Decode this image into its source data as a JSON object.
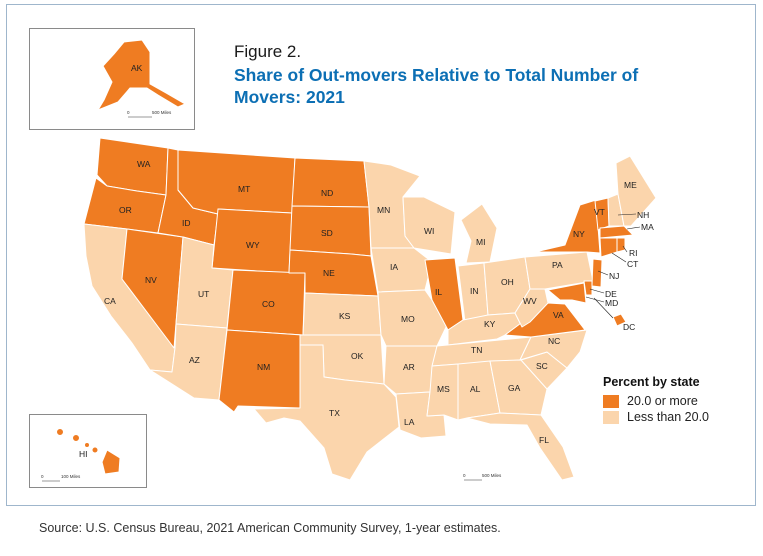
{
  "figure": {
    "label": "Figure 2.",
    "title": "Share of Out-movers Relative to Total Number of Movers: 2021"
  },
  "legend": {
    "title": "Percent by state",
    "items": [
      {
        "label": "20.0 or more",
        "color": "#ef7c22"
      },
      {
        "label": "Less than 20.0",
        "color": "#fbd5ac"
      }
    ]
  },
  "colors": {
    "high": "#ef7c22",
    "low": "#fbd5ac",
    "border": "#ffffff"
  },
  "states": {
    "WA": "high",
    "OR": "high",
    "CA": "low",
    "NV": "high",
    "ID": "high",
    "MT": "high",
    "WY": "high",
    "UT": "low",
    "AZ": "low",
    "CO": "high",
    "NM": "high",
    "ND": "high",
    "SD": "high",
    "NE": "high",
    "KS": "low",
    "OK": "low",
    "TX": "low",
    "MN": "low",
    "IA": "low",
    "MO": "low",
    "AR": "low",
    "LA": "low",
    "WI": "low",
    "IL": "high",
    "MI": "low",
    "IN": "low",
    "OH": "low",
    "KY": "low",
    "TN": "low",
    "MS": "low",
    "AL": "low",
    "GA": "low",
    "FL": "low",
    "SC": "low",
    "NC": "low",
    "VA": "high",
    "WV": "low",
    "PA": "low",
    "NY": "high",
    "VT": "high",
    "NH": "low",
    "ME": "low",
    "MA": "high",
    "RI": "high",
    "CT": "high",
    "NJ": "high",
    "DE": "high",
    "MD": "high",
    "DC": "high",
    "AK": "high",
    "HI": "high"
  },
  "scale_bars": {
    "alaska": "500 Miles",
    "hawaii": "100 Miles",
    "mainland": "500 Miles",
    "zero": "0"
  },
  "source": "Source: U.S. Census Bureau, 2021 American Community Survey, 1-year estimates."
}
